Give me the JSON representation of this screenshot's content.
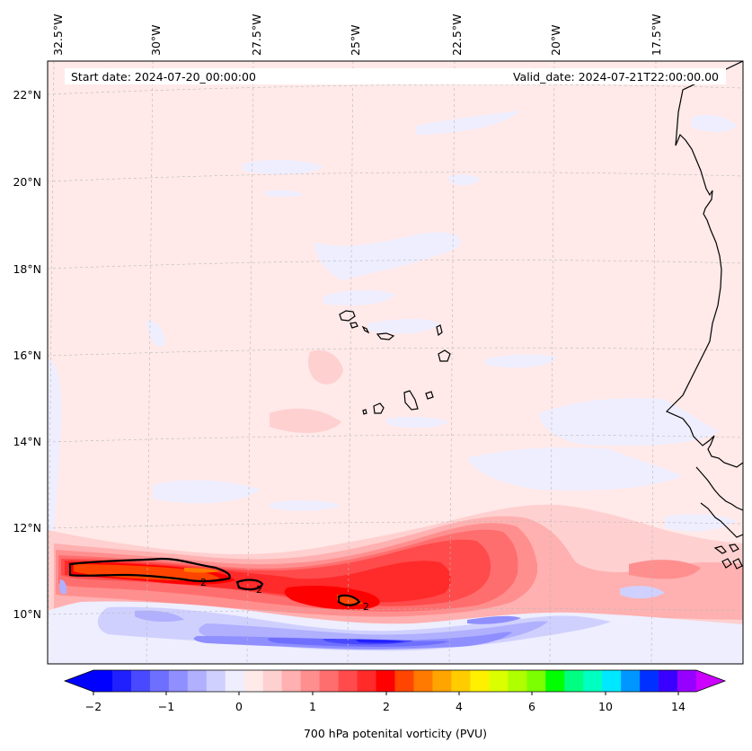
{
  "header": {
    "start_date": "Start date: 2024-07-20_00:00:00",
    "valid_date": "Valid_date: 2024-07-21T22:00:00.00"
  },
  "map": {
    "longitude_labels": [
      "32.5°W",
      "30°W",
      "27.5°W",
      "25°W",
      "22.5°W",
      "20°W",
      "17.5°W"
    ],
    "latitude_labels": [
      "22°N",
      "20°N",
      "18°N",
      "16°N",
      "14°N",
      "12°N",
      "10°N"
    ],
    "contour_level_label": "2",
    "contour_labels": [
      "2",
      "2",
      "2"
    ]
  },
  "colorbar": {
    "label": "700 hPa potenital vorticity (PVU)",
    "tick_labels": [
      "−2",
      "−1",
      "0",
      "1",
      "2",
      "4",
      "6",
      "10",
      "14"
    ],
    "colors": [
      "#0000ff",
      "#2020ff",
      "#4949ff",
      "#6f6fff",
      "#8f8fff",
      "#b0b0ff",
      "#d0d0ff",
      "#eeeeff",
      "#ffeaea",
      "#ffd0d0",
      "#ffb0b0",
      "#ff8f8f",
      "#ff6e6e",
      "#ff4b4b",
      "#ff2a2a",
      "#ff0000",
      "#ff4500",
      "#ff7a00",
      "#ffa400",
      "#ffcc00",
      "#fff000",
      "#dcff00",
      "#b0ff00",
      "#7cff00",
      "#00ff00",
      "#00ff80",
      "#00ffc0",
      "#00e8ff",
      "#0096ff",
      "#0030ff",
      "#3a00ff",
      "#9600ff"
    ],
    "extend_low_color": "#0000ff",
    "extend_high_color": "#cc00ff"
  },
  "colors": {
    "background_field": "#ffe9e9",
    "negative_weak": "#eeeeff"
  }
}
